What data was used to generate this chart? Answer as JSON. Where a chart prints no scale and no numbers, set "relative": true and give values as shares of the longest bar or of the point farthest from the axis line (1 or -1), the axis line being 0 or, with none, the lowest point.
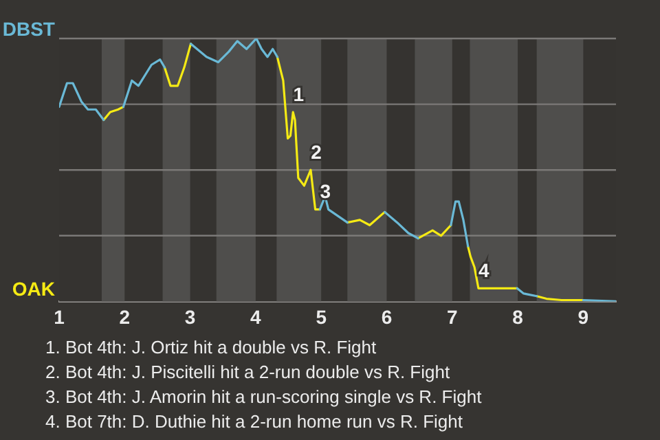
{
  "chart_data": {
    "type": "line",
    "relative": true,
    "x": [
      1.0,
      1.12,
      1.21,
      1.34,
      1.44,
      1.56,
      1.68,
      1.78,
      1.9,
      1.98,
      2.11,
      2.21,
      2.41,
      2.54,
      2.61,
      2.7,
      2.81,
      2.91,
      3.01,
      3.25,
      3.43,
      3.59,
      3.72,
      3.86,
      4.01,
      4.09,
      4.18,
      4.26,
      4.33,
      4.42,
      4.49,
      4.53,
      4.57,
      4.6,
      4.65,
      4.74,
      4.84,
      4.91,
      4.98,
      5.06,
      5.11,
      5.4,
      5.59,
      5.74,
      5.97,
      6.16,
      6.33,
      6.48,
      6.7,
      6.83,
      6.98,
      7.05,
      7.1,
      7.17,
      7.24,
      7.28,
      7.34,
      7.4,
      7.52,
      7.86,
      7.87,
      7.99,
      8.09,
      8.29,
      8.44,
      8.67,
      9.0,
      9.5
    ],
    "xlim": [
      1,
      9.5
    ],
    "xticks": [
      1,
      2,
      3,
      4,
      5,
      6,
      7,
      8,
      9
    ],
    "grid": "y",
    "legend": false,
    "marker": "none",
    "series": [
      {
        "name": "DBST",
        "color": "#6ab9d6",
        "values": [
          0.74,
          0.83,
          0.83,
          0.76,
          0.73,
          0.73,
          0.69,
          null,
          null,
          0.74,
          0.84,
          0.82,
          0.9,
          0.92,
          0.89,
          null,
          null,
          null,
          0.98,
          0.93,
          0.91,
          0.95,
          0.99,
          0.96,
          1,
          0.96,
          0.93,
          0.96,
          0.93,
          null,
          null,
          null,
          null,
          null,
          null,
          null,
          null,
          null,
          0.35,
          0.4,
          0.35,
          0.3,
          null,
          null,
          0.34,
          0.3,
          0.26,
          0.24,
          null,
          null,
          0.29,
          0.38,
          0.38,
          0.31,
          0.21,
          null,
          null,
          null,
          null,
          null,
          null,
          0.05,
          0.03,
          0.02,
          null,
          null,
          0.005,
          0
        ]
      },
      {
        "name": "OAK",
        "color": "#f5ea14",
        "values": [
          null,
          null,
          null,
          null,
          null,
          null,
          0.69,
          0.72,
          0.73,
          0.74,
          null,
          null,
          null,
          null,
          0.89,
          0.82,
          0.82,
          0.89,
          0.98,
          null,
          null,
          null,
          null,
          null,
          null,
          null,
          null,
          null,
          0.93,
          0.84,
          0.62,
          0.63,
          0.72,
          0.69,
          0.47,
          0.44,
          0.5,
          0.35,
          0.35,
          null,
          null,
          0.3,
          0.31,
          0.29,
          0.34,
          null,
          null,
          0.24,
          0.27,
          0.25,
          0.29,
          null,
          null,
          null,
          0.21,
          0.17,
          0.13,
          0.05,
          0.05,
          0.05,
          0.05,
          0.05,
          null,
          0.02,
          0.01,
          0.005,
          0.005,
          null
        ]
      }
    ],
    "bands": [
      {
        "axis": "x",
        "from": 1.65,
        "to": 2,
        "color": "#4f4e4c"
      },
      {
        "axis": "x",
        "from": 2.58,
        "to": 3,
        "color": "#4f4e4c"
      },
      {
        "axis": "x",
        "from": 3.4,
        "to": 4,
        "color": "#4f4e4c"
      },
      {
        "axis": "x",
        "from": 4.32,
        "to": 5,
        "color": "#4f4e4c"
      },
      {
        "axis": "x",
        "from": 5.4,
        "to": 6,
        "color": "#4f4e4c"
      },
      {
        "axis": "x",
        "from": 6.43,
        "to": 7,
        "color": "#4f4e4c"
      },
      {
        "axis": "x",
        "from": 7.27,
        "to": 8,
        "color": "#4f4e4c"
      },
      {
        "axis": "x",
        "from": 8.29,
        "to": 9,
        "color": "#4f4e4c"
      }
    ],
    "annotations": [
      {
        "text": "1",
        "x": 4.57,
        "y": 0.72
      },
      {
        "text": "2",
        "x": 4.84,
        "y": 0.5
      },
      {
        "text": "3",
        "x": 4.98,
        "y": 0.35
      },
      {
        "text": "4",
        "x": 7.4,
        "y": 0.05
      },
      "1. Bot 4th: J. Ortiz hit a double vs R. Fight",
      "2. Bot 4th: J. Piscitelli hit a 2-run double vs R. Fight",
      "3. Bot 4th: J. Amorin hit a run-scoring single vs R. Fight",
      "4. Bot 7th: D. Duthie hit a 2-run home run vs R. Fight"
    ]
  }
}
